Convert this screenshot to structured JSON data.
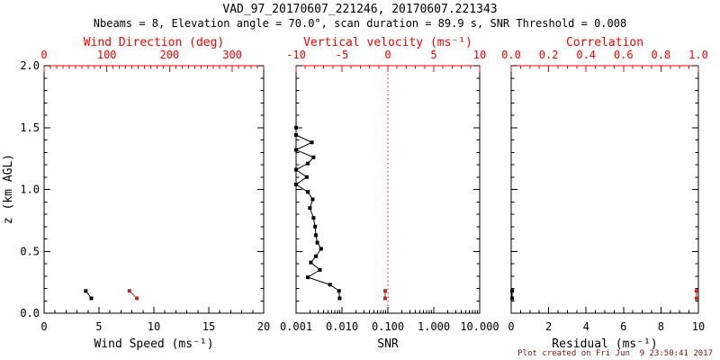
{
  "header": {
    "title": "VAD_97_20170607_221246, 20170607.221343",
    "subtitle": "Nbeams = 8, Elevation angle = 70.0°, scan duration = 89.9 s, SNR Threshold = 0.008"
  },
  "footer": {
    "created": "Plot created on Fri Jun  9 23:50:41 2017"
  },
  "colors": {
    "axis_red": "#ff0000",
    "data_red": "#aa3322",
    "footer_red": "#7a1010",
    "black": "#000000",
    "background": "#ffffff"
  },
  "chart_data": [
    {
      "type": "scatter",
      "panel": "wind",
      "y_axis": {
        "label": "z (km AGL)",
        "range": [
          0,
          2
        ],
        "ticks": [
          0,
          0.5,
          1,
          1.5,
          2
        ],
        "tick_labels": [
          "0.0",
          "0.5",
          "1.0",
          "1.5",
          "2.0"
        ],
        "minor_step": 0.1
      },
      "bottom_axis": {
        "label": "Wind Speed (ms⁻¹)",
        "range": [
          0,
          20
        ],
        "scale": "linear",
        "ticks": [
          0,
          5,
          10,
          15,
          20
        ],
        "tick_labels": [
          "0",
          "5",
          "10",
          "15",
          "20"
        ],
        "minor_step": 1,
        "color": "black"
      },
      "top_axis": {
        "label": "Wind Direction (deg)",
        "range": [
          0,
          350
        ],
        "scale": "linear",
        "ticks": [
          0,
          100,
          200,
          300
        ],
        "tick_labels": [
          "0",
          "100",
          "200",
          "300"
        ],
        "minor_step": 10,
        "color": "axis_red"
      },
      "series": [
        {
          "name": "wind-speed",
          "axis": "bottom",
          "color": "black",
          "points": [
            {
              "x": 3.8,
              "z": 0.18
            },
            {
              "x": 4.3,
              "z": 0.12
            }
          ]
        },
        {
          "name": "wind-direction",
          "axis": "top",
          "color": "data_red",
          "points": [
            {
              "x": 136,
              "z": 0.18
            },
            {
              "x": 148,
              "z": 0.12
            }
          ]
        }
      ]
    },
    {
      "type": "scatter",
      "panel": "snr",
      "y_axis": {
        "label": "",
        "range": [
          0,
          2
        ],
        "ticks": [
          0,
          0.5,
          1,
          1.5,
          2
        ],
        "tick_labels": [],
        "minor_step": 0.1
      },
      "bottom_axis": {
        "label": "SNR",
        "range": [
          0.001,
          10
        ],
        "scale": "log",
        "ticks": [
          0.001,
          0.01,
          0.1,
          1,
          10
        ],
        "tick_labels": [
          "0.001",
          "0.010",
          "0.100",
          "1.000",
          "10.000"
        ],
        "color": "black"
      },
      "top_axis": {
        "label": "Vertical velocity (ms⁻¹)",
        "range": [
          -10,
          10
        ],
        "scale": "linear",
        "ticks": [
          -10,
          -5,
          0,
          5,
          10
        ],
        "tick_labels": [
          "-10",
          "-5",
          "0",
          "5",
          "10"
        ],
        "minor_step": 1,
        "color": "axis_red"
      },
      "refline": {
        "axis": "top",
        "value": 0,
        "style": "dotted",
        "color": "axis_red"
      },
      "series": [
        {
          "name": "snr-profile",
          "axis": "bottom",
          "color": "black",
          "points": [
            {
              "x": 0.001,
              "z": 1.5
            },
            {
              "x": 0.001,
              "z": 1.44
            },
            {
              "x": 0.0022,
              "z": 1.38
            },
            {
              "x": 0.001,
              "z": 1.32
            },
            {
              "x": 0.0024,
              "z": 1.26
            },
            {
              "x": 0.0018,
              "z": 1.21
            },
            {
              "x": 0.001,
              "z": 1.16
            },
            {
              "x": 0.0017,
              "z": 1.1
            },
            {
              "x": 0.001,
              "z": 1.04
            },
            {
              "x": 0.0018,
              "z": 0.98
            },
            {
              "x": 0.0023,
              "z": 0.92
            },
            {
              "x": 0.002,
              "z": 0.85
            },
            {
              "x": 0.0024,
              "z": 0.77
            },
            {
              "x": 0.0026,
              "z": 0.7
            },
            {
              "x": 0.0027,
              "z": 0.63
            },
            {
              "x": 0.0029,
              "z": 0.57
            },
            {
              "x": 0.0035,
              "z": 0.52
            },
            {
              "x": 0.0027,
              "z": 0.46
            },
            {
              "x": 0.0021,
              "z": 0.41
            },
            {
              "x": 0.0033,
              "z": 0.35
            },
            {
              "x": 0.0018,
              "z": 0.29
            },
            {
              "x": 0.0055,
              "z": 0.23
            },
            {
              "x": 0.0086,
              "z": 0.18
            },
            {
              "x": 0.0089,
              "z": 0.12
            }
          ]
        },
        {
          "name": "vertical-velocity",
          "axis": "top",
          "color": "data_red",
          "points": [
            {
              "x": -0.3,
              "z": 0.18
            },
            {
              "x": -0.3,
              "z": 0.12
            }
          ]
        }
      ]
    },
    {
      "type": "scatter",
      "panel": "residual",
      "y_axis": {
        "label": "",
        "range": [
          0,
          2
        ],
        "ticks": [
          0,
          0.5,
          1,
          1.5,
          2
        ],
        "tick_labels": [],
        "minor_step": 0.1
      },
      "bottom_axis": {
        "label": "Residual (ms⁻¹)",
        "range": [
          0,
          10
        ],
        "scale": "linear",
        "ticks": [
          0,
          2,
          4,
          6,
          8,
          10
        ],
        "tick_labels": [
          "0",
          "2",
          "4",
          "6",
          "8",
          "10"
        ],
        "minor_step": 0.5,
        "color": "black"
      },
      "top_axis": {
        "label": "Correlation",
        "range": [
          0,
          1
        ],
        "scale": "linear",
        "ticks": [
          0,
          0.2,
          0.4,
          0.6,
          0.8,
          1.0
        ],
        "tick_labels": [
          "0.0",
          "0.2",
          "0.4",
          "0.6",
          "0.8",
          "1.0"
        ],
        "minor_step": 0.05,
        "color": "axis_red"
      },
      "series": [
        {
          "name": "residual",
          "axis": "bottom",
          "color": "black",
          "points": [
            {
              "x": 0.05,
              "z": 0.18
            },
            {
              "x": 0.05,
              "z": 0.12
            }
          ]
        },
        {
          "name": "correlation",
          "axis": "top",
          "color": "data_red",
          "points": [
            {
              "x": 0.99,
              "z": 0.18
            },
            {
              "x": 0.99,
              "z": 0.12
            }
          ]
        }
      ]
    }
  ]
}
